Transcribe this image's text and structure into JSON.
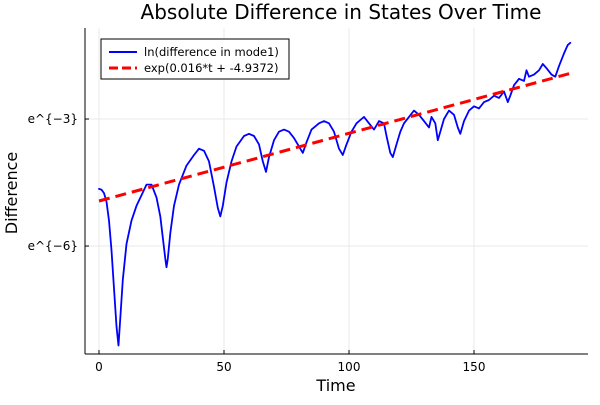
{
  "chart_data": {
    "type": "line",
    "title": "Absolute Difference in States Over Time",
    "xlabel": "Time",
    "ylabel": "Difference",
    "x_ticks": [
      {
        "value": 0,
        "label": "0"
      },
      {
        "value": 50,
        "label": "50"
      },
      {
        "value": 100,
        "label": "100"
      },
      {
        "value": 150,
        "label": "150"
      }
    ],
    "y_ticks": [
      {
        "value": -3,
        "label": "e^{−3}"
      },
      {
        "value": -6,
        "label": "e^{−6}"
      }
    ],
    "xlim": [
      -5.6,
      195.6
    ],
    "ylim": [
      -8.55,
      -0.85
    ],
    "grid": true,
    "legend_position": "top-left",
    "colors": {
      "series1": "#0000ff",
      "series2": "#ff0000"
    },
    "series": [
      {
        "name": "ln(difference in mode1)",
        "style": "solid",
        "points": [
          [
            0,
            -4.65
          ],
          [
            1,
            -4.67
          ],
          [
            2,
            -4.75
          ],
          [
            3,
            -4.95
          ],
          [
            4,
            -5.4
          ],
          [
            5,
            -6.1
          ],
          [
            6,
            -7.0
          ],
          [
            7,
            -7.9
          ],
          [
            7.8,
            -8.35
          ],
          [
            8.5,
            -7.7
          ],
          [
            9.5,
            -6.8
          ],
          [
            11,
            -5.95
          ],
          [
            13,
            -5.4
          ],
          [
            15,
            -5.05
          ],
          [
            17,
            -4.8
          ],
          [
            19,
            -4.55
          ],
          [
            21,
            -4.55
          ],
          [
            23,
            -4.85
          ],
          [
            24.5,
            -5.3
          ],
          [
            25.5,
            -5.8
          ],
          [
            26.5,
            -6.3
          ],
          [
            27,
            -6.5
          ],
          [
            27.5,
            -6.3
          ],
          [
            28.5,
            -5.7
          ],
          [
            30,
            -5.05
          ],
          [
            32,
            -4.55
          ],
          [
            35,
            -4.1
          ],
          [
            38,
            -3.85
          ],
          [
            40,
            -3.7
          ],
          [
            42,
            -3.75
          ],
          [
            44,
            -4.0
          ],
          [
            46,
            -4.6
          ],
          [
            47.5,
            -5.1
          ],
          [
            48.5,
            -5.3
          ],
          [
            49.5,
            -5.05
          ],
          [
            51,
            -4.5
          ],
          [
            53,
            -4.0
          ],
          [
            55,
            -3.65
          ],
          [
            58,
            -3.4
          ],
          [
            60,
            -3.35
          ],
          [
            62,
            -3.4
          ],
          [
            64,
            -3.6
          ],
          [
            65.5,
            -4.0
          ],
          [
            66.8,
            -4.25
          ],
          [
            68,
            -3.9
          ],
          [
            70,
            -3.5
          ],
          [
            72,
            -3.3
          ],
          [
            74,
            -3.25
          ],
          [
            76,
            -3.3
          ],
          [
            78,
            -3.45
          ],
          [
            80,
            -3.65
          ],
          [
            81.5,
            -3.8
          ],
          [
            83,
            -3.55
          ],
          [
            85,
            -3.25
          ],
          [
            88,
            -3.1
          ],
          [
            90,
            -3.05
          ],
          [
            92,
            -3.1
          ],
          [
            94,
            -3.3
          ],
          [
            96,
            -3.7
          ],
          [
            97.5,
            -3.85
          ],
          [
            99,
            -3.6
          ],
          [
            101,
            -3.3
          ],
          [
            103,
            -3.1
          ],
          [
            105,
            -3.0
          ],
          [
            106,
            -2.95
          ],
          [
            108,
            -3.1
          ],
          [
            110,
            -3.25
          ],
          [
            112,
            -3.05
          ],
          [
            114,
            -3.1
          ],
          [
            115,
            -3.4
          ],
          [
            116.5,
            -3.8
          ],
          [
            117.5,
            -3.9
          ],
          [
            119,
            -3.6
          ],
          [
            120.5,
            -3.3
          ],
          [
            122,
            -3.1
          ],
          [
            124,
            -2.95
          ],
          [
            126,
            -2.8
          ],
          [
            128,
            -2.9
          ],
          [
            130,
            -3.05
          ],
          [
            132,
            -3.2
          ],
          [
            133,
            -2.95
          ],
          [
            134.5,
            -3.1
          ],
          [
            135.5,
            -3.5
          ],
          [
            136.5,
            -3.3
          ],
          [
            138,
            -3.0
          ],
          [
            140,
            -2.8
          ],
          [
            142,
            -2.9
          ],
          [
            143.5,
            -3.2
          ],
          [
            144.5,
            -3.35
          ],
          [
            146,
            -3.05
          ],
          [
            148,
            -2.8
          ],
          [
            150,
            -2.7
          ],
          [
            152,
            -2.75
          ],
          [
            154,
            -2.6
          ],
          [
            156,
            -2.55
          ],
          [
            158,
            -2.45
          ],
          [
            160,
            -2.5
          ],
          [
            162,
            -2.35
          ],
          [
            163.5,
            -2.6
          ],
          [
            164.5,
            -2.45
          ],
          [
            166,
            -2.2
          ],
          [
            168,
            -2.05
          ],
          [
            170,
            -2.1
          ],
          [
            171,
            -1.85
          ],
          [
            172,
            -2.0
          ],
          [
            174,
            -1.95
          ],
          [
            176,
            -1.85
          ],
          [
            177.5,
            -1.7
          ],
          [
            179,
            -1.8
          ],
          [
            181,
            -1.95
          ],
          [
            182.5,
            -2.0
          ],
          [
            184,
            -1.75
          ],
          [
            186,
            -1.45
          ],
          [
            187.5,
            -1.25
          ],
          [
            188.5,
            -1.2
          ]
        ]
      },
      {
        "name": "exp(0.016*t + -4.9372)",
        "style": "dashed",
        "points": [
          [
            0,
            -4.9372
          ],
          [
            188.5,
            -1.9212
          ]
        ]
      }
    ]
  }
}
